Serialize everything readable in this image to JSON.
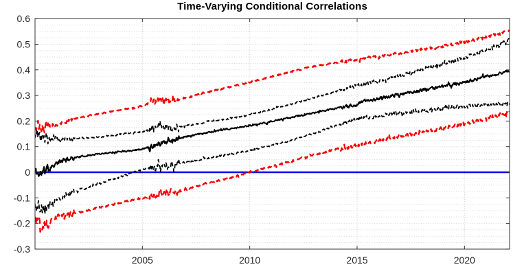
{
  "title": "Time-Varying Conditional Correlations",
  "colors": {
    "background": "#ffffff",
    "axis_box": "#333333",
    "tick_label": "#262626",
    "grid_minor": "#d4d4d4",
    "grid_major_x": "#c6c6c6",
    "correlation_black": "#000000",
    "band_red": "#f40000",
    "zero_line_blue": "#0000ee"
  },
  "chart_data": {
    "type": "line",
    "title": "Time-Varying Conditional Correlations",
    "xlabel": "",
    "ylabel": "",
    "x_range": [
      2000,
      2022.1
    ],
    "y_range": [
      -0.3,
      0.6
    ],
    "x_ticks": [
      {
        "value": 2005,
        "label": "2005"
      },
      {
        "value": 2010,
        "label": "2010"
      },
      {
        "value": 2015,
        "label": "2015"
      },
      {
        "value": 2020,
        "label": "2020"
      }
    ],
    "y_ticks": [
      {
        "value": 0.6,
        "label": "0.6"
      },
      {
        "value": 0.5,
        "label": "0.5"
      },
      {
        "value": 0.4,
        "label": "0.4"
      },
      {
        "value": 0.3,
        "label": "0.3"
      },
      {
        "value": 0.2,
        "label": "0.2"
      },
      {
        "value": 0.1,
        "label": "0.1"
      },
      {
        "value": 0,
        "label": "0"
      },
      {
        "value": -0.1,
        "label": "-0.1"
      },
      {
        "value": -0.2,
        "label": "-0.2"
      },
      {
        "value": -0.3,
        "label": "-0.3"
      }
    ],
    "grid": {
      "style": "dotted",
      "y_minor_step": 0.025,
      "x_major_only": true
    },
    "legend": null,
    "noise_periods": [
      {
        "from": 2000.0,
        "to": 2000.7,
        "amp": 0.028
      },
      {
        "from": 2000.7,
        "to": 2001.8,
        "amp": 0.013
      },
      {
        "from": 2001.8,
        "to": 2005.3,
        "amp": 0.0045
      },
      {
        "from": 2005.3,
        "to": 2006.7,
        "amp": 0.017
      },
      {
        "from": 2006.7,
        "to": 2014.2,
        "amp": 0.0045
      },
      {
        "from": 2014.2,
        "to": 2022.2,
        "amp": 0.009
      }
    ],
    "series": [
      {
        "name": "zero-reference-line",
        "color": "#0000ee",
        "style": "solid",
        "width": 2.4,
        "noise_scale": 0,
        "seed": 1,
        "anchors": [
          [
            2000,
            0
          ],
          [
            2022.1,
            0
          ]
        ]
      },
      {
        "name": "lower-outer-band-red",
        "color": "#f40000",
        "style": "dashed",
        "dash": "9 6",
        "width": 2.2,
        "noise_scale": 1.25,
        "seed": 71,
        "anchors": [
          [
            2000,
            -0.185
          ],
          [
            2000.4,
            -0.21
          ],
          [
            2001,
            -0.175
          ],
          [
            2002,
            -0.158
          ],
          [
            2003,
            -0.138
          ],
          [
            2004,
            -0.118
          ],
          [
            2005,
            -0.103
          ],
          [
            2005.8,
            -0.085
          ],
          [
            2006.3,
            -0.08
          ],
          [
            2007,
            -0.066
          ],
          [
            2008,
            -0.044
          ],
          [
            2009,
            -0.022
          ],
          [
            2010,
            0.0
          ],
          [
            2011,
            0.022
          ],
          [
            2012,
            0.045
          ],
          [
            2013,
            0.068
          ],
          [
            2014,
            0.09
          ],
          [
            2015,
            0.105
          ],
          [
            2016,
            0.122
          ],
          [
            2017,
            0.14
          ],
          [
            2018,
            0.156
          ],
          [
            2019,
            0.172
          ],
          [
            2020,
            0.19
          ],
          [
            2021,
            0.21
          ],
          [
            2022.1,
            0.232
          ]
        ]
      },
      {
        "name": "upper-outer-band-red",
        "color": "#f40000",
        "style": "dashed",
        "dash": "9 6",
        "width": 2.2,
        "noise_scale": 1.0,
        "seed": 53,
        "anchors": [
          [
            2000,
            0.19
          ],
          [
            2000.4,
            0.172
          ],
          [
            2001,
            0.19
          ],
          [
            2002,
            0.212
          ],
          [
            2003,
            0.228
          ],
          [
            2004,
            0.244
          ],
          [
            2005,
            0.258
          ],
          [
            2005.8,
            0.285
          ],
          [
            2006.3,
            0.278
          ],
          [
            2007,
            0.29
          ],
          [
            2008,
            0.312
          ],
          [
            2009,
            0.332
          ],
          [
            2010,
            0.352
          ],
          [
            2011,
            0.373
          ],
          [
            2012,
            0.394
          ],
          [
            2013,
            0.414
          ],
          [
            2014,
            0.428
          ],
          [
            2015,
            0.44
          ],
          [
            2016,
            0.452
          ],
          [
            2017,
            0.465
          ],
          [
            2018,
            0.478
          ],
          [
            2019,
            0.492
          ],
          [
            2020,
            0.508
          ],
          [
            2021,
            0.528
          ],
          [
            2022.1,
            0.552
          ]
        ]
      },
      {
        "name": "lower-inner-band-black",
        "color": "#000000",
        "style": "dashed",
        "dash": "6 4",
        "width": 1.7,
        "noise_scale": 1.25,
        "seed": 37,
        "anchors": [
          [
            2000,
            -0.125
          ],
          [
            2000.4,
            -0.148
          ],
          [
            2001,
            -0.102
          ],
          [
            2002,
            -0.072
          ],
          [
            2003,
            -0.044
          ],
          [
            2004,
            -0.018
          ],
          [
            2004.6,
            0.0
          ],
          [
            2005,
            0.01
          ],
          [
            2005.6,
            0.02
          ],
          [
            2006.2,
            0.026
          ],
          [
            2007,
            0.04
          ],
          [
            2008,
            0.054
          ],
          [
            2009,
            0.07
          ],
          [
            2010,
            0.085
          ],
          [
            2011,
            0.105
          ],
          [
            2012,
            0.126
          ],
          [
            2013,
            0.152
          ],
          [
            2014,
            0.182
          ],
          [
            2015,
            0.208
          ],
          [
            2016,
            0.222
          ],
          [
            2017,
            0.232
          ],
          [
            2018,
            0.241
          ],
          [
            2019,
            0.249
          ],
          [
            2020,
            0.256
          ],
          [
            2021,
            0.264
          ],
          [
            2022.1,
            0.272
          ]
        ]
      },
      {
        "name": "upper-inner-band-black",
        "color": "#000000",
        "style": "dashed",
        "dash": "6 4",
        "width": 1.7,
        "noise_scale": 1.1,
        "seed": 23,
        "anchors": [
          [
            2000,
            0.148
          ],
          [
            2000.4,
            0.126
          ],
          [
            2001,
            0.132
          ],
          [
            2002,
            0.132
          ],
          [
            2003,
            0.138
          ],
          [
            2004,
            0.148
          ],
          [
            2005,
            0.158
          ],
          [
            2005.8,
            0.185
          ],
          [
            2006.3,
            0.172
          ],
          [
            2007,
            0.18
          ],
          [
            2008,
            0.196
          ],
          [
            2009,
            0.21
          ],
          [
            2010,
            0.225
          ],
          [
            2011,
            0.246
          ],
          [
            2012,
            0.268
          ],
          [
            2013,
            0.292
          ],
          [
            2014,
            0.315
          ],
          [
            2015,
            0.338
          ],
          [
            2016,
            0.358
          ],
          [
            2017,
            0.378
          ],
          [
            2018,
            0.4
          ],
          [
            2019,
            0.424
          ],
          [
            2020,
            0.448
          ],
          [
            2021,
            0.478
          ],
          [
            2022.1,
            0.515
          ]
        ]
      },
      {
        "name": "conditional-correlation",
        "color": "#000000",
        "style": "solid",
        "width": 2.0,
        "noise_scale": 1.0,
        "seed": 11,
        "anchors": [
          [
            2000,
            0.005
          ],
          [
            2000.2,
            -0.01
          ],
          [
            2000.5,
            0.01
          ],
          [
            2001,
            0.035
          ],
          [
            2001.5,
            0.05
          ],
          [
            2002,
            0.06
          ],
          [
            2003,
            0.072
          ],
          [
            2004,
            0.082
          ],
          [
            2005,
            0.09
          ],
          [
            2005.5,
            0.105
          ],
          [
            2006,
            0.118
          ],
          [
            2006.5,
            0.128
          ],
          [
            2007,
            0.138
          ],
          [
            2008,
            0.155
          ],
          [
            2009,
            0.168
          ],
          [
            2010,
            0.182
          ],
          [
            2011,
            0.198
          ],
          [
            2012,
            0.215
          ],
          [
            2013,
            0.232
          ],
          [
            2014,
            0.25
          ],
          [
            2014.9,
            0.262
          ],
          [
            2015.3,
            0.278
          ],
          [
            2016,
            0.288
          ],
          [
            2017,
            0.304
          ],
          [
            2018,
            0.32
          ],
          [
            2019,
            0.336
          ],
          [
            2020,
            0.352
          ],
          [
            2021,
            0.372
          ],
          [
            2022.1,
            0.396
          ]
        ]
      }
    ]
  }
}
